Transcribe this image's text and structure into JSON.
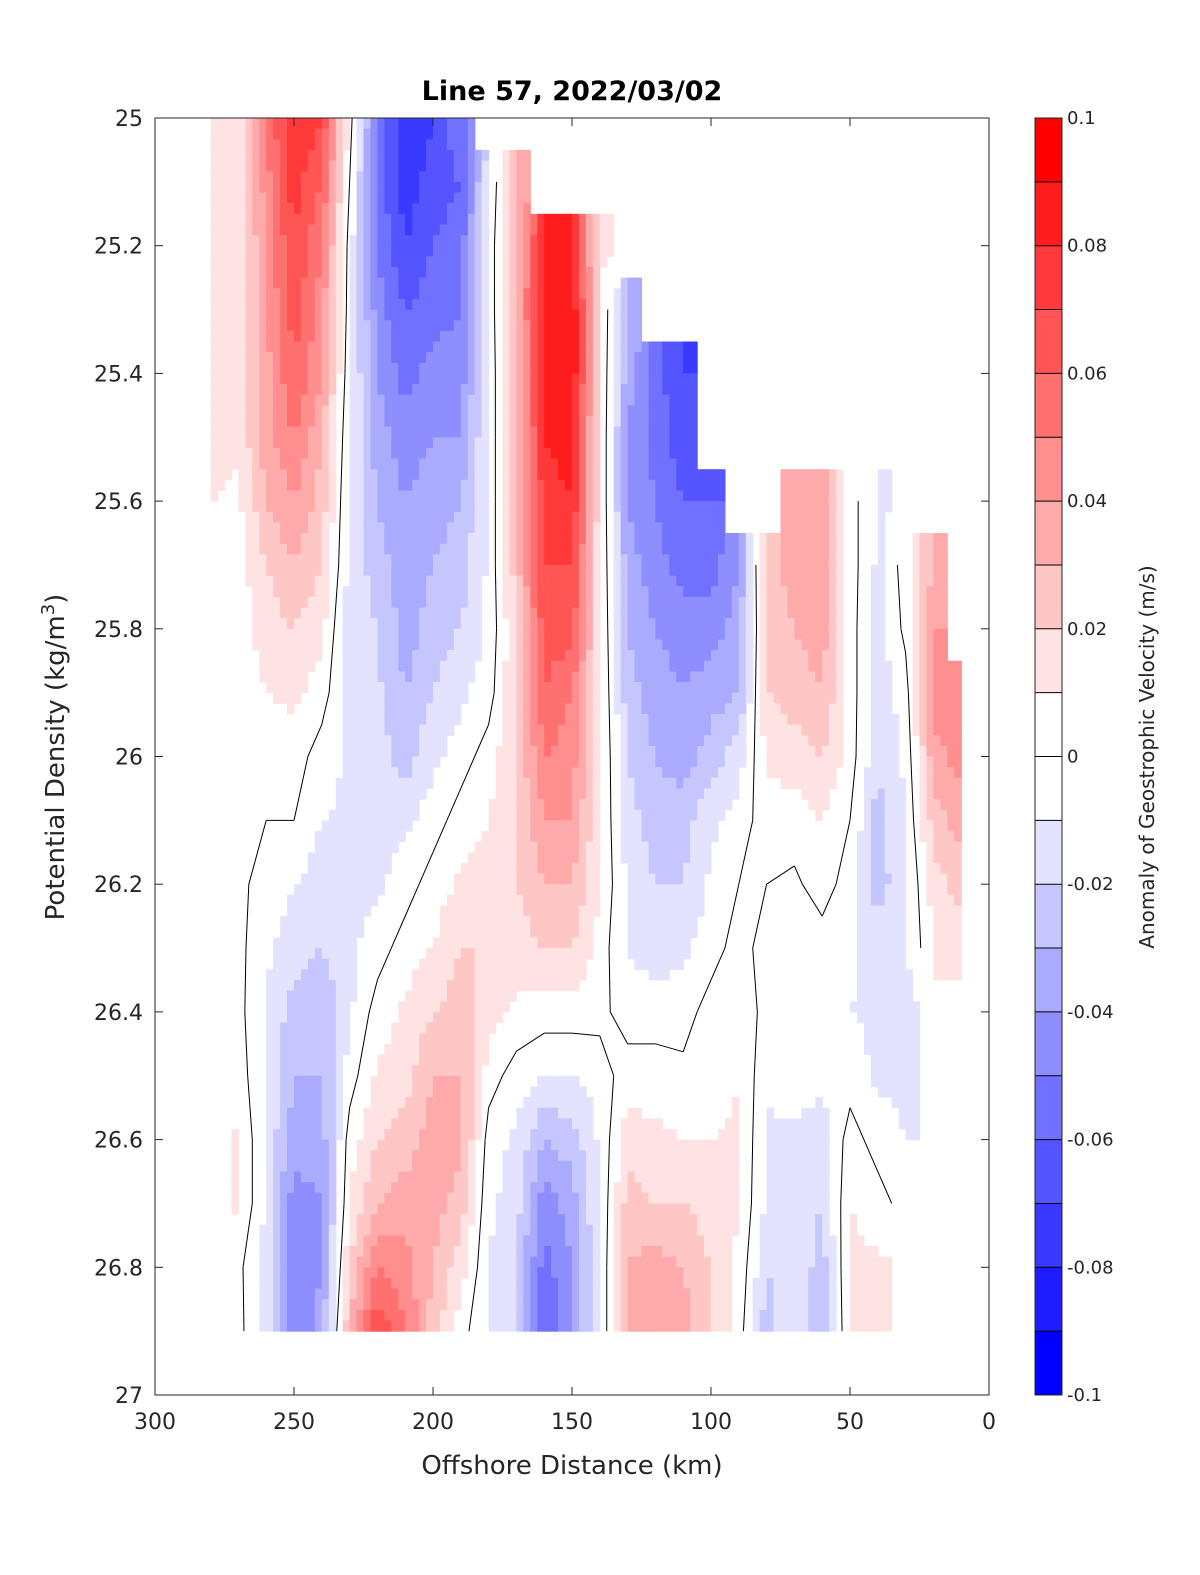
{
  "chart_data": {
    "type": "heatmap",
    "subtype": "filled-contour",
    "title": "Line 57, 2022/03/02",
    "xlabel": "Offshore Distance (km)",
    "ylabel": "Potential Density (kg/m",
    "ylabel_sup": "3",
    "ylabel_end": ")",
    "colorbar_label": "Anomaly of Geostrophic Velocity (m/s)",
    "xlim": [
      300,
      0
    ],
    "ylim": [
      25,
      27
    ],
    "x_reversed": true,
    "y_reversed": true,
    "xticks": [
      "300",
      "250",
      "200",
      "150",
      "100",
      "50",
      "0"
    ],
    "yticks": [
      "25",
      "25.2",
      "25.4",
      "25.6",
      "25.8",
      "26",
      "26.2",
      "26.4",
      "26.6",
      "26.8",
      "27"
    ],
    "clim": [
      -0.1,
      0.1
    ],
    "level_step": 0.01,
    "colorbar_ticks": [
      "0.1",
      "0.08",
      "0.06",
      "0.04",
      "0.02",
      "0",
      "-0.02",
      "-0.04",
      "-0.06",
      "-0.08",
      "-0.1"
    ],
    "colormap": {
      "negative": "#0000ff",
      "zero": "#ffffff",
      "positive": "#ff0000"
    },
    "contour_level": 0,
    "x": [
      280,
      270,
      260,
      250,
      240,
      230,
      220,
      210,
      200,
      190,
      180,
      170,
      160,
      150,
      140,
      130,
      120,
      110,
      100,
      90,
      80,
      70,
      60,
      50,
      40,
      30,
      20,
      10
    ],
    "y": [
      25.0,
      25.1,
      25.2,
      25.3,
      25.4,
      25.5,
      25.6,
      25.7,
      25.8,
      25.9,
      26.0,
      26.1,
      26.2,
      26.3,
      26.4,
      26.5,
      26.6,
      26.7,
      26.8,
      26.9
    ],
    "z_columns": [
      [
        0.015,
        0.015,
        0.015,
        0.015,
        0.015,
        0.015,
        0.01,
        0.005,
        0.005,
        0.005,
        0.005,
        0.003,
        0.003,
        0.003,
        0.003,
        0.003,
        0.006,
        0.006,
        0.003,
        0.003
      ],
      [
        0.012,
        0.012,
        0.012,
        0.012,
        0.012,
        0.012,
        0.008,
        0.005,
        0.005,
        0.005,
        0.005,
        0.003,
        0.003,
        0.003,
        0.003,
        0.005,
        0.012,
        0.012,
        0.003,
        0.003
      ],
      [
        0.05,
        0.045,
        0.04,
        0.04,
        0.035,
        0.035,
        0.03,
        0.02,
        0.015,
        0.01,
        0.005,
        0,
        -0.005,
        -0.008,
        -0.01,
        -0.01,
        -0.012,
        -0.012,
        -0.015,
        -0.012
      ],
      [
        0.08,
        0.075,
        0.07,
        0.065,
        0.06,
        0.05,
        0.04,
        0.03,
        0.02,
        0.012,
        0.005,
        0,
        -0.01,
        -0.015,
        -0.025,
        -0.03,
        -0.035,
        -0.045,
        -0.05,
        -0.05
      ],
      [
        0.07,
        0.06,
        0.05,
        0.045,
        0.04,
        0.03,
        0.025,
        0.02,
        0.012,
        0.005,
        -0.005,
        -0.01,
        -0.015,
        -0.02,
        -0.03,
        -0.03,
        -0.035,
        -0.04,
        -0.04,
        -0.035
      ],
      [
        0.005,
        0,
        -0.005,
        -0.006,
        -0.008,
        -0.01,
        -0.012,
        -0.013,
        -0.015,
        -0.014,
        -0.012,
        -0.012,
        -0.012,
        -0.012,
        -0.012,
        -0.005,
        0.005,
        0.01,
        0.02,
        0.03
      ],
      [
        -0.05,
        -0.055,
        -0.05,
        -0.045,
        -0.04,
        -0.035,
        -0.03,
        -0.025,
        -0.02,
        -0.018,
        -0.015,
        -0.012,
        -0.012,
        -0.005,
        0.005,
        0.012,
        0.02,
        0.03,
        0.05,
        0.07
      ],
      [
        -0.08,
        -0.075,
        -0.07,
        -0.06,
        -0.055,
        -0.045,
        -0.04,
        -0.035,
        -0.035,
        -0.03,
        -0.025,
        -0.012,
        -0.005,
        0.005,
        0.012,
        0.015,
        0.025,
        0.035,
        0.045,
        0.05
      ],
      [
        -0.07,
        -0.065,
        -0.06,
        -0.055,
        -0.045,
        -0.04,
        -0.035,
        -0.03,
        -0.025,
        -0.02,
        -0.012,
        -0.005,
        0.005,
        0.01,
        0.02,
        0.03,
        0.035,
        0.035,
        0.03,
        0.025
      ],
      [
        -0.05,
        -0.06,
        -0.055,
        -0.05,
        -0.045,
        -0.04,
        -0.03,
        -0.025,
        -0.02,
        -0.012,
        -0.005,
        0.005,
        0.012,
        0.02,
        0.025,
        0.03,
        0.035,
        0.025,
        0.015,
        0.005
      ],
      [
        null,
        -0.012,
        -0.008,
        -0.008,
        -0.008,
        -0.008,
        -0.008,
        -0.008,
        -0.008,
        -0.005,
        0.005,
        0.01,
        0.015,
        0.02,
        0.015,
        0.005,
        -0.005,
        -0.008,
        -0.01,
        -0.012
      ],
      [
        null,
        0.03,
        0.03,
        0.03,
        0.025,
        0.025,
        0.025,
        0.025,
        0.02,
        0.02,
        0.02,
        0.02,
        0.02,
        0.015,
        0.008,
        -0.005,
        -0.012,
        -0.015,
        -0.02,
        -0.02
      ],
      [
        null,
        null,
        0.08,
        0.085,
        0.085,
        0.08,
        0.075,
        0.07,
        0.065,
        0.06,
        0.05,
        0.04,
        0.03,
        0.02,
        0.005,
        -0.01,
        -0.03,
        -0.045,
        -0.055,
        -0.06
      ],
      [
        null,
        null,
        0.085,
        0.09,
        0.09,
        0.085,
        0.08,
        0.07,
        0.065,
        0.05,
        0.045,
        0.04,
        0.03,
        0.02,
        0.005,
        -0.01,
        -0.025,
        -0.035,
        -0.04,
        -0.04
      ],
      [
        null,
        null,
        0.012,
        0.012,
        0.012,
        0.012,
        0.012,
        0.012,
        0.012,
        0.012,
        0.012,
        0.01,
        0.01,
        0.005,
        0.003,
        -0.005,
        -0.008,
        -0.01,
        -0.01,
        -0.01
      ],
      [
        null,
        null,
        null,
        -0.03,
        -0.035,
        -0.04,
        -0.04,
        -0.035,
        -0.03,
        -0.025,
        -0.02,
        -0.015,
        -0.012,
        -0.01,
        -0.005,
        0.005,
        0.015,
        0.025,
        0.03,
        0.03
      ],
      [
        null,
        null,
        null,
        null,
        -0.055,
        -0.055,
        -0.05,
        -0.045,
        -0.04,
        -0.035,
        -0.03,
        -0.025,
        -0.02,
        -0.015,
        -0.005,
        0.005,
        0.012,
        0.02,
        0.035,
        0.04
      ],
      [
        null,
        null,
        null,
        null,
        -0.07,
        -0.065,
        -0.06,
        -0.055,
        -0.045,
        -0.04,
        -0.035,
        -0.025,
        -0.02,
        -0.012,
        -0.005,
        0.003,
        0.01,
        0.02,
        0.03,
        0.035
      ],
      [
        null,
        null,
        null,
        null,
        null,
        null,
        -0.06,
        -0.055,
        -0.045,
        -0.035,
        -0.025,
        -0.012,
        -0.008,
        -0.005,
        0.005,
        0.005,
        0.01,
        0.015,
        0.02,
        0.02
      ],
      [
        null,
        null,
        null,
        null,
        null,
        null,
        null,
        -0.04,
        -0.035,
        -0.03,
        -0.015,
        -0.005,
        0,
        0.005,
        0.01,
        0.01,
        0.012,
        0.01,
        0.008,
        0.005
      ],
      [
        null,
        null,
        null,
        null,
        null,
        null,
        null,
        0.025,
        0.02,
        0.02,
        0.012,
        0.005,
        0,
        -0.005,
        -0.005,
        -0.008,
        -0.012,
        -0.012,
        -0.02,
        -0.025
      ],
      [
        null,
        null,
        null,
        null,
        null,
        null,
        0.03,
        0.035,
        0.03,
        0.025,
        0.015,
        0.005,
        -0.002,
        -0.005,
        -0.005,
        -0.005,
        -0.012,
        -0.012,
        -0.012,
        -0.012
      ],
      [
        null,
        null,
        null,
        null,
        null,
        null,
        0.04,
        0.04,
        0.035,
        0.03,
        0.02,
        0.01,
        0.005,
        -0.005,
        -0.005,
        -0.008,
        -0.015,
        -0.02,
        -0.025,
        -0.03
      ],
      [
        null,
        null,
        null,
        null,
        null,
        null,
        0.005,
        0.005,
        0.005,
        0.005,
        0.005,
        0,
        -0.005,
        -0.008,
        -0.01,
        -0.005,
        0.005,
        0.01,
        0.012,
        0.012
      ],
      [
        null,
        null,
        null,
        null,
        null,
        null,
        -0.012,
        -0.012,
        -0.015,
        -0.015,
        -0.018,
        -0.025,
        -0.025,
        -0.015,
        -0.012,
        -0.012,
        -0.005,
        0.005,
        0.012,
        0.012
      ],
      [
        null,
        null,
        null,
        null,
        null,
        null,
        null,
        0.005,
        0.003,
        -0.005,
        -0.008,
        -0.01,
        -0.012,
        -0.012,
        -0.012,
        -0.012,
        -0.01,
        -0.005,
        null,
        null
      ],
      [
        null,
        null,
        null,
        null,
        null,
        null,
        null,
        0.03,
        0.04,
        0.045,
        0.035,
        0.025,
        0.015,
        0.01,
        null,
        null,
        null,
        null,
        null,
        null
      ],
      [
        null,
        null,
        null,
        null,
        null,
        null,
        null,
        null,
        null,
        0.05,
        0.045,
        0.035,
        0.025,
        0.015,
        null,
        null,
        null,
        null,
        null,
        null
      ]
    ]
  }
}
